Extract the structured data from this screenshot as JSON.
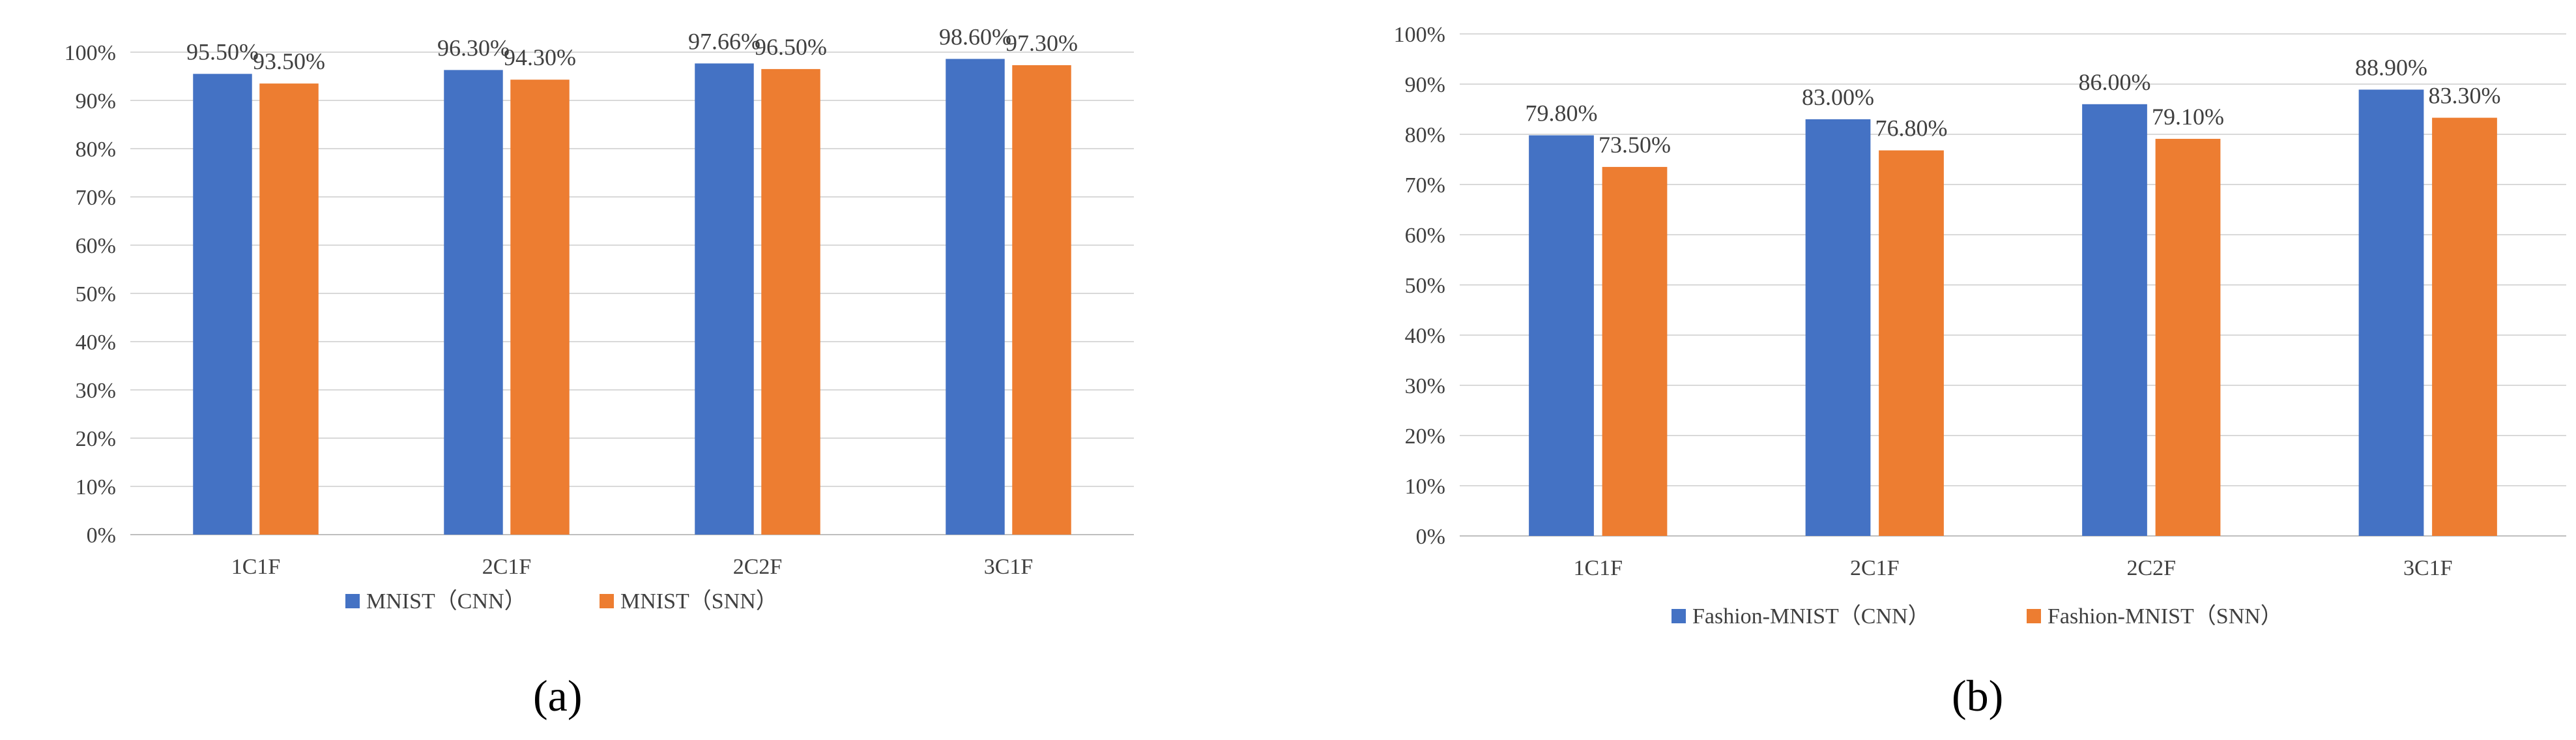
{
  "chart_data": [
    {
      "type": "bar",
      "panel_label": "(a)",
      "categories": [
        "1C1F",
        "2C1F",
        "2C2F",
        "3C1F"
      ],
      "series": [
        {
          "name": "MNIST（CNN）",
          "values": [
            95.5,
            96.3,
            97.66,
            98.6
          ],
          "labels": [
            "95.50%",
            "96.30%",
            "97.66%",
            "98.60%"
          ],
          "color": "#4472C4"
        },
        {
          "name": "MNIST（SNN）",
          "values": [
            93.5,
            94.3,
            96.5,
            97.3
          ],
          "labels": [
            "93.50%",
            "94.30%",
            "96.50%",
            "97.30%"
          ],
          "color": "#ED7D31"
        }
      ],
      "ylim": [
        0,
        100
      ],
      "yticks": [
        0,
        10,
        20,
        30,
        40,
        50,
        60,
        70,
        80,
        90,
        100
      ],
      "ytick_labels": [
        "0%",
        "10%",
        "20%",
        "30%",
        "40%",
        "50%",
        "60%",
        "70%",
        "80%",
        "90%",
        "100%"
      ],
      "grid": true,
      "legend": "bottom"
    },
    {
      "type": "bar",
      "panel_label": "(b)",
      "categories": [
        "1C1F",
        "2C1F",
        "2C2F",
        "3C1F"
      ],
      "series": [
        {
          "name": "Fashion-MNIST（CNN）",
          "values": [
            79.8,
            83.0,
            86.0,
            88.9
          ],
          "labels": [
            "79.80%",
            "83.00%",
            "86.00%",
            "88.90%"
          ],
          "color": "#4472C4"
        },
        {
          "name": "Fashion-MNIST（SNN）",
          "values": [
            73.5,
            76.8,
            79.1,
            83.3
          ],
          "labels": [
            "73.50%",
            "76.80%",
            "79.10%",
            "83.30%"
          ],
          "color": "#ED7D31"
        }
      ],
      "ylim": [
        0,
        100
      ],
      "yticks": [
        0,
        10,
        20,
        30,
        40,
        50,
        60,
        70,
        80,
        90,
        100
      ],
      "ytick_labels": [
        "0%",
        "10%",
        "20%",
        "30%",
        "40%",
        "50%",
        "60%",
        "70%",
        "80%",
        "90%",
        "100%"
      ],
      "grid": true,
      "legend": "bottom"
    }
  ]
}
